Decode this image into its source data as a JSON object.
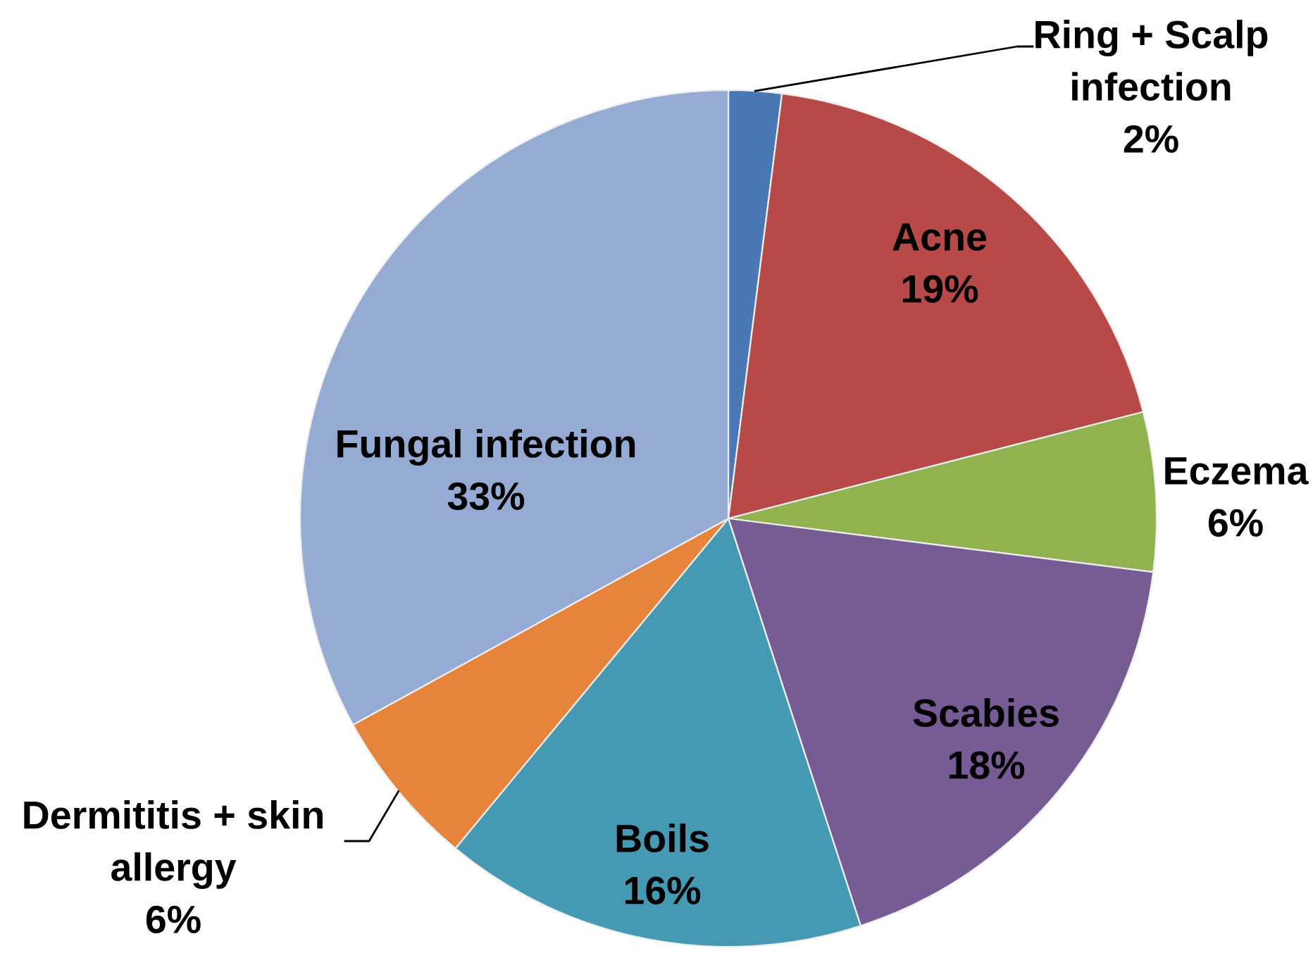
{
  "chart_data": {
    "type": "pie",
    "categories": [
      "Ring + Scalp\ninfection",
      "Acne",
      "Eczema",
      "Scabies",
      "Boils",
      "Dermititis + skin\nallergy",
      "Fungal infection"
    ],
    "values": [
      2,
      19,
      6,
      18,
      16,
      6,
      33
    ],
    "value_labels": [
      "2%",
      "19%",
      "6%",
      "18%",
      "16%",
      "6%",
      "33%"
    ],
    "colors": [
      "#4a78b4",
      "#b74a48",
      "#90b24f",
      "#775b94",
      "#4599b3",
      "#e6843c",
      "#96abd4"
    ]
  }
}
